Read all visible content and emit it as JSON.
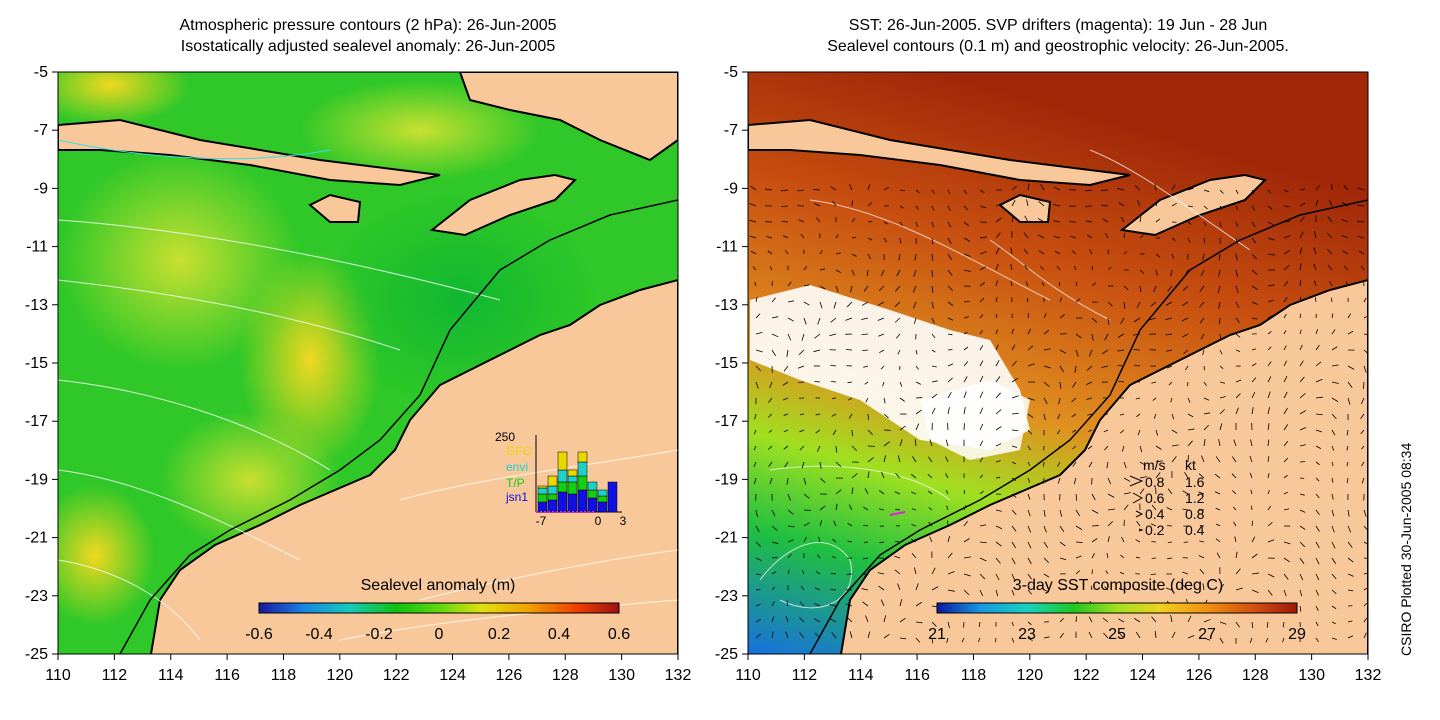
{
  "left_panel": {
    "title_line1": "Atmospheric pressure contours (2 hPa): 26-Jun-2005",
    "title_line2": "Isostatically adjusted sealevel anomaly: 26-Jun-2005",
    "colorbar_label": "Sealevel anomaly (m)",
    "colorbar_ticks": [
      "-0.6",
      "-0.4",
      "-0.2",
      "0",
      "0.2",
      "0.4",
      "0.6"
    ],
    "inset": {
      "ymax_label": "250",
      "legend": [
        {
          "label": "GFO",
          "color": "#e8d800"
        },
        {
          "label": "envi",
          "color": "#20d0c8"
        },
        {
          "label": "T/P",
          "color": "#10d010"
        },
        {
          "label": "jsn1",
          "color": "#1010e0"
        }
      ],
      "x_ticks": [
        "-7",
        "0",
        "3"
      ]
    }
  },
  "right_panel": {
    "title_line1": "SST: 26-Jun-2005. SVP drifters (magenta): 19 Jun - 28 Jun",
    "title_line2": "Sealevel contours (0.1 m) and geostrophic velocity: 26-Jun-2005.",
    "colorbar_label": "3-day SST composite (deg C)",
    "colorbar_ticks": [
      "21",
      "23",
      "25",
      "27",
      "29"
    ],
    "vector_legend": {
      "header_ms": "m/s",
      "header_kt": "kt",
      "rows": [
        {
          "ms": "0.8",
          "kt": "1.6"
        },
        {
          "ms": "0.6",
          "kt": "1.2"
        },
        {
          "ms": "0.4",
          "kt": "0.8"
        },
        {
          "ms": "0.2",
          "kt": "0.4"
        }
      ]
    }
  },
  "axes": {
    "y_ticks": [
      "-5",
      "-7",
      "-9",
      "-11",
      "-13",
      "-15",
      "-17",
      "-19",
      "-21",
      "-23",
      "-25"
    ],
    "x_ticks": [
      "110",
      "112",
      "114",
      "116",
      "118",
      "120",
      "122",
      "124",
      "126",
      "128",
      "130",
      "132"
    ],
    "lon_range": [
      110,
      132
    ],
    "lat_range": [
      -25,
      -5
    ]
  },
  "side_caption": "CSIRO Plotted 30-Jun-2005 08:34",
  "colors": {
    "land": "#f8c89a",
    "sla_gradient": [
      "#1818a0",
      "#1880e0",
      "#18c8c0",
      "#10c010",
      "#80e010",
      "#e8e010",
      "#f0a000",
      "#f04000",
      "#a01010"
    ],
    "sst_gradient": [
      "#0818a0",
      "#1898e0",
      "#18d0c0",
      "#20c820",
      "#a0e020",
      "#f0d020",
      "#f09010",
      "#d05010",
      "#a01808"
    ]
  }
}
